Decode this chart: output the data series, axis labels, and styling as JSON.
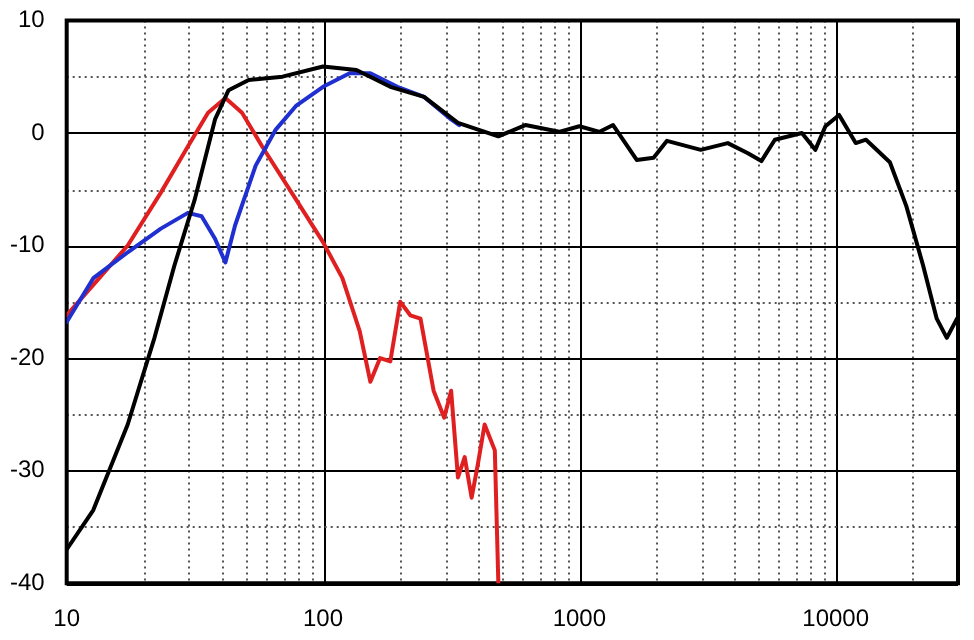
{
  "chart_data": {
    "type": "line",
    "log": "x",
    "grid": true,
    "legend": false,
    "marker": "none",
    "line_style": "solid",
    "xlim": [
      10,
      30000
    ],
    "ylim": [
      -40,
      10
    ],
    "xticks": [
      10,
      {
        "value": 20,
        "label": null
      },
      {
        "value": 30,
        "label": null
      },
      {
        "value": 40,
        "label": null
      },
      {
        "value": 50,
        "label": null
      },
      {
        "value": 60,
        "label": null
      },
      {
        "value": 70,
        "label": null
      },
      {
        "value": 80,
        "label": null
      },
      {
        "value": 90,
        "label": null
      },
      100,
      {
        "value": 200,
        "label": null
      },
      {
        "value": 300,
        "label": null
      },
      {
        "value": 400,
        "label": null
      },
      {
        "value": 500,
        "label": null
      },
      {
        "value": 600,
        "label": null
      },
      {
        "value": 700,
        "label": null
      },
      {
        "value": 800,
        "label": null
      },
      {
        "value": 900,
        "label": null
      },
      1000,
      {
        "value": 2000,
        "label": null
      },
      {
        "value": 3000,
        "label": null
      },
      {
        "value": 4000,
        "label": null
      },
      {
        "value": 5000,
        "label": null
      },
      {
        "value": 6000,
        "label": null
      },
      {
        "value": 7000,
        "label": null
      },
      {
        "value": 8000,
        "label": null
      },
      {
        "value": 9000,
        "label": null
      },
      10000,
      {
        "value": 20000,
        "label": null
      },
      {
        "value": 30000,
        "label": null
      }
    ],
    "yticks": [
      10,
      {
        "value": 5,
        "label": null
      },
      0,
      {
        "value": -5,
        "label": null
      },
      -10,
      {
        "value": -15,
        "label": null
      },
      -20,
      {
        "value": -25,
        "label": null
      },
      -30,
      {
        "value": -35,
        "label": null
      },
      -40
    ],
    "series": [
      {
        "color": "#000000",
        "x": [
          10,
          12.7,
          17.3,
          22,
          26.3,
          31.6,
          37.9,
          42.8,
          51.3,
          69.5,
          100,
          135,
          183,
          248,
          336,
          483,
          616,
          834,
          1000,
          1199,
          1354,
          1674,
          1948,
          2197,
          2976,
          3793,
          4545,
          5129,
          5790,
          7383,
          8325,
          9120,
          10310,
          11970,
          13130,
          16270,
          18860,
          21940,
          24780,
          27130,
          29730
        ],
        "values": [
          -37,
          -33.5,
          -25.9,
          -18.2,
          -11.8,
          -5.9,
          1.2,
          3.8,
          4.7,
          5,
          5.9,
          5.6,
          4.1,
          3.2,
          0.9,
          -0.3,
          0.7,
          0.1,
          0.6,
          0.1,
          0.7,
          -2.4,
          -2.2,
          -0.7,
          -1.5,
          -0.9,
          -1.8,
          -2.5,
          -0.6,
          0,
          -1.5,
          0.6,
          1.6,
          -0.9,
          -0.6,
          -2.6,
          -6.5,
          -11.8,
          -16.5,
          -18.2,
          -16.5
        ]
      },
      {
        "color": "#2030d0",
        "x": [
          10,
          12.7,
          17.3,
          23.3,
          29.7,
          33.6,
          37.9,
          41.6,
          45.4,
          54.6,
          65.4,
          78.4,
          100,
          127,
          153,
          195,
          248,
          316,
          340
        ],
        "values": [
          -16.8,
          -12.9,
          -10.6,
          -8.5,
          -7.1,
          -7.4,
          -9.4,
          -11.5,
          -8.2,
          -2.9,
          0.3,
          2.4,
          4.1,
          5.3,
          5.3,
          4.1,
          3.2,
          1.2,
          0.7
        ]
      },
      {
        "color": "#e02020",
        "x": [
          10,
          12.7,
          17.3,
          23.3,
          29.7,
          35.6,
          41.6,
          48.3,
          57.9,
          78.4,
          100,
          119,
          139,
          153,
          167,
          183,
          200,
          219,
          240,
          270,
          297,
          316,
          336,
          357,
          380,
          402,
          427,
          468,
          483
        ],
        "values": [
          -16.2,
          -13.5,
          -10,
          -5.3,
          -1.2,
          1.8,
          3.1,
          1.8,
          -1.2,
          -5.9,
          -9.7,
          -12.9,
          -17.6,
          -22.1,
          -20,
          -20.3,
          -15,
          -16.2,
          -16.5,
          -22.9,
          -25.3,
          -22.9,
          -30.6,
          -28.8,
          -32.4,
          -29.4,
          -25.9,
          -28.2,
          -40
        ]
      }
    ]
  }
}
